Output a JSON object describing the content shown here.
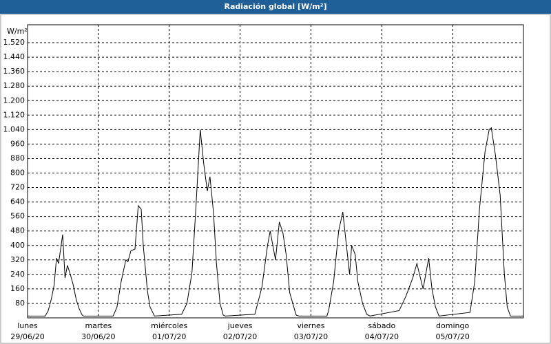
{
  "chart_data": {
    "type": "line",
    "title": "Radiación global [W/m²]",
    "y_label": "W/m²",
    "color": "#000000",
    "grid": true,
    "x": [
      0,
      6,
      7,
      8,
      9,
      9.8,
      10.5,
      11.9,
      12.7,
      13.5,
      14.5,
      15.5,
      16.5,
      17.5,
      18.5,
      19,
      29,
      30.3,
      31.7,
      33.3,
      34,
      35,
      36.4,
      37.5,
      38.5,
      39.2,
      40.6,
      41.5,
      43,
      52.2,
      54,
      55.7,
      57,
      58.5,
      59.7,
      60.9,
      61.8,
      63,
      64,
      65.2,
      66.3,
      67,
      77,
      79.4,
      81.3,
      82.2,
      84,
      85.3,
      86.5,
      87.6,
      88.8,
      90.2,
      91,
      92,
      101.4,
      102,
      103.7,
      105.4,
      106.8,
      107.9,
      109.1,
      109.8,
      111,
      111.9,
      113.5,
      114.9,
      116,
      125.9,
      128.2,
      130.5,
      131.9,
      134,
      135.9,
      137,
      138.2,
      139.4,
      149.9,
      151.5,
      153.1,
      155,
      156.4,
      157.1,
      158.5,
      160.1,
      161.5,
      162.5,
      163.6,
      168
    ],
    "values": [
      10,
      10,
      40,
      100,
      180,
      330,
      300,
      460,
      220,
      290,
      240,
      180,
      100,
      50,
      15,
      10,
      10,
      60,
      200,
      320,
      310,
      370,
      380,
      620,
      600,
      400,
      150,
      60,
      10,
      20,
      80,
      250,
      600,
      1040,
      850,
      700,
      780,
      580,
      300,
      80,
      15,
      10,
      20,
      170,
      400,
      480,
      320,
      530,
      470,
      350,
      140,
      60,
      15,
      10,
      10,
      40,
      200,
      480,
      585,
      420,
      240,
      400,
      350,
      200,
      80,
      20,
      10,
      40,
      120,
      220,
      300,
      160,
      330,
      160,
      60,
      10,
      30,
      200,
      600,
      920,
      1040,
      1050,
      900,
      680,
      250,
      60,
      10,
      10
    ],
    "xlim": [
      0,
      168
    ],
    "xticks": [
      {
        "value": 0,
        "label": "lunes",
        "date": "29/06/20"
      },
      {
        "value": 24,
        "label": "martes",
        "date": "30/06/20"
      },
      {
        "value": 48,
        "label": "miércoles",
        "date": "01/07/20"
      },
      {
        "value": 72,
        "label": "jueves",
        "date": "02/07/20"
      },
      {
        "value": 96,
        "label": "viernes",
        "date": "03/07/20"
      },
      {
        "value": 120,
        "label": "sábado",
        "date": "04/07/20"
      },
      {
        "value": 144,
        "label": "domingo",
        "date": "05/07/20"
      }
    ],
    "ylim": [
      0,
      1600
    ],
    "yticks": [
      80,
      160,
      240,
      320,
      400,
      480,
      560,
      640,
      720,
      800,
      880,
      960,
      {
        "value": 1040,
        "label": "1.040"
      },
      {
        "value": 1120,
        "label": "1.120"
      },
      {
        "value": 1200,
        "label": "1.200"
      },
      {
        "value": 1280,
        "label": "1.280"
      },
      {
        "value": 1360,
        "label": "1.360"
      },
      {
        "value": 1440,
        "label": "1.440"
      },
      {
        "value": 1520,
        "label": "1.520"
      }
    ]
  }
}
